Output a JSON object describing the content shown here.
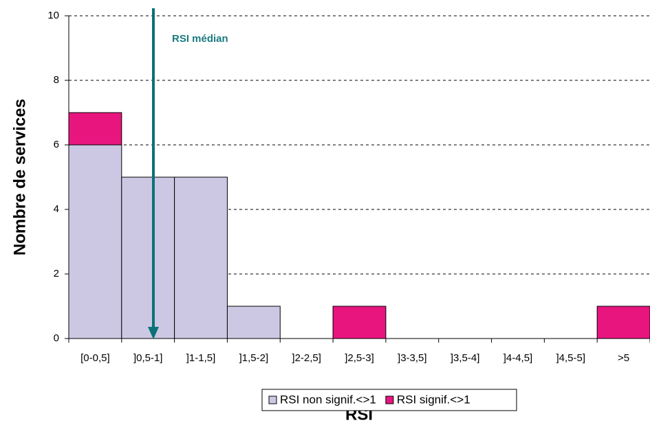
{
  "chart_data": {
    "type": "bar",
    "stacked": true,
    "xlabel": "RSI",
    "ylabel": "Nombre de services",
    "annotation": "RSI médian",
    "categories": [
      "[0-0,5]",
      "]0,5-1]",
      "]1-1,5]",
      "]1,5-2]",
      "]2-2,5]",
      "]2,5-3]",
      "]3-3,5]",
      "]3,5-4]",
      "]4-4,5]",
      "]4,5-5]",
      ">5"
    ],
    "series": [
      {
        "name": "RSI non signif.<>1",
        "color": "#ccc8e4",
        "values": [
          6,
          5,
          5,
          1,
          0,
          0,
          0,
          0,
          0,
          0,
          0
        ]
      },
      {
        "name": "RSI signif.<>1",
        "color": "#e8157f",
        "values": [
          1,
          0,
          0,
          0,
          0,
          1,
          0,
          0,
          0,
          0,
          1
        ]
      }
    ],
    "ylim": [
      0,
      10
    ],
    "yticks": [
      0,
      2,
      4,
      6,
      8,
      10
    ],
    "grid": true,
    "legend": "bottom"
  }
}
